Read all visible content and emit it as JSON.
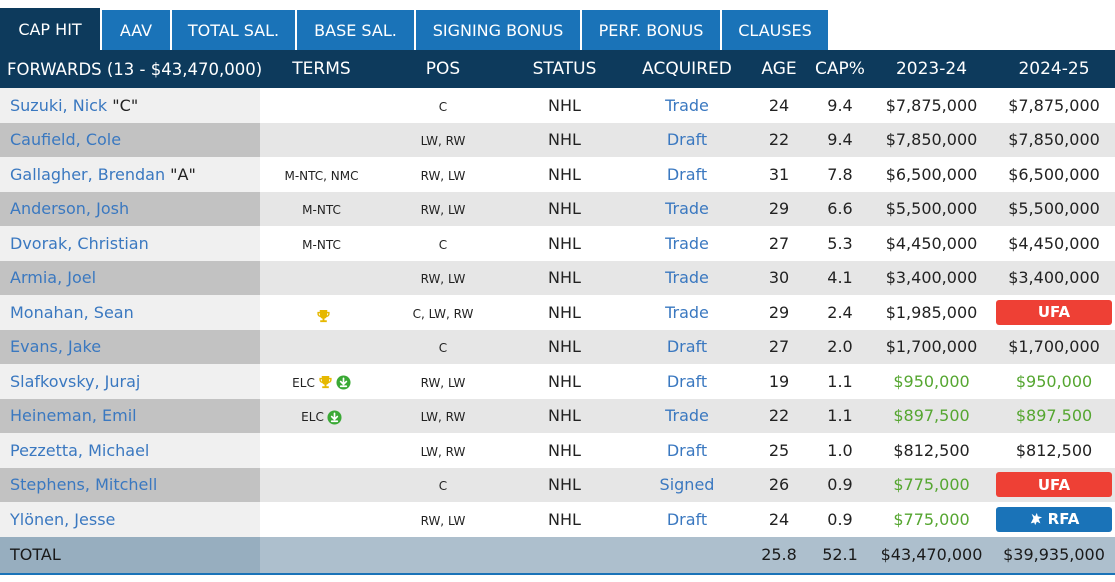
{
  "tabs": [
    "CAP HIT",
    "AAV",
    "TOTAL SAL.",
    "BASE SAL.",
    "SIGNING BONUS",
    "PERF. BONUS",
    "CLAUSES"
  ],
  "header": {
    "group": "FORWARDS (13 - $43,470,000)",
    "terms": "TERMS",
    "pos": "POS",
    "status": "STATUS",
    "acquired": "ACQUIRED",
    "age": "AGE",
    "cap_pct": "CAP%",
    "y1": "2023-24",
    "y2": "2024-25"
  },
  "colors": {
    "tab_active": "#0d3a5c",
    "tab": "#1a73b8",
    "link": "#3a78c0",
    "green": "#55a630",
    "ufa": "#ee4035",
    "rfa": "#1a73b8"
  },
  "rows": [
    {
      "name": "Suzuki, Nick",
      "tag": " \"C\"",
      "terms": "",
      "icons": [],
      "pos": "C",
      "status": "NHL",
      "acquired": "Trade",
      "age": "24",
      "cap": "9.4",
      "y1": "$7,875,000",
      "y1_green": false,
      "y2": "$7,875,000",
      "y2_green": false,
      "y2_badge": ""
    },
    {
      "name": "Caufield, Cole",
      "tag": "",
      "terms": "",
      "icons": [],
      "pos": "LW, RW",
      "status": "NHL",
      "acquired": "Draft",
      "age": "22",
      "cap": "9.4",
      "y1": "$7,850,000",
      "y1_green": false,
      "y2": "$7,850,000",
      "y2_green": false,
      "y2_badge": ""
    },
    {
      "name": "Gallagher, Brendan",
      "tag": " \"A\"",
      "terms": "M-NTC, NMC",
      "icons": [],
      "pos": "RW, LW",
      "status": "NHL",
      "acquired": "Draft",
      "age": "31",
      "cap": "7.8",
      "y1": "$6,500,000",
      "y1_green": false,
      "y2": "$6,500,000",
      "y2_green": false,
      "y2_badge": ""
    },
    {
      "name": "Anderson, Josh",
      "tag": "",
      "terms": "M-NTC",
      "icons": [],
      "pos": "RW, LW",
      "status": "NHL",
      "acquired": "Trade",
      "age": "29",
      "cap": "6.6",
      "y1": "$5,500,000",
      "y1_green": false,
      "y2": "$5,500,000",
      "y2_green": false,
      "y2_badge": ""
    },
    {
      "name": "Dvorak, Christian",
      "tag": "",
      "terms": "M-NTC",
      "icons": [],
      "pos": "C",
      "status": "NHL",
      "acquired": "Trade",
      "age": "27",
      "cap": "5.3",
      "y1": "$4,450,000",
      "y1_green": false,
      "y2": "$4,450,000",
      "y2_green": false,
      "y2_badge": ""
    },
    {
      "name": "Armia, Joel",
      "tag": "",
      "terms": "",
      "icons": [],
      "pos": "RW, LW",
      "status": "NHL",
      "acquired": "Trade",
      "age": "30",
      "cap": "4.1",
      "y1": "$3,400,000",
      "y1_green": false,
      "y2": "$3,400,000",
      "y2_green": false,
      "y2_badge": ""
    },
    {
      "name": "Monahan, Sean",
      "tag": "",
      "terms": "",
      "icons": [
        "trophy-icon"
      ],
      "pos": "C, LW, RW",
      "status": "NHL",
      "acquired": "Trade",
      "age": "29",
      "cap": "2.4",
      "y1": "$1,985,000",
      "y1_green": false,
      "y2": "",
      "y2_green": false,
      "y2_badge": "UFA"
    },
    {
      "name": "Evans, Jake",
      "tag": "",
      "terms": "",
      "icons": [],
      "pos": "C",
      "status": "NHL",
      "acquired": "Draft",
      "age": "27",
      "cap": "2.0",
      "y1": "$1,700,000",
      "y1_green": false,
      "y2": "$1,700,000",
      "y2_green": false,
      "y2_badge": ""
    },
    {
      "name": "Slafkovsky, Juraj",
      "tag": "",
      "terms": "ELC",
      "icons": [
        "trophy-icon",
        "download-icon"
      ],
      "pos": "RW, LW",
      "status": "NHL",
      "acquired": "Draft",
      "age": "19",
      "cap": "1.1",
      "y1": "$950,000",
      "y1_green": true,
      "y2": "$950,000",
      "y2_green": true,
      "y2_badge": ""
    },
    {
      "name": "Heineman, Emil",
      "tag": "",
      "terms": "ELC",
      "icons": [
        "download-icon"
      ],
      "pos": "LW, RW",
      "status": "NHL",
      "acquired": "Trade",
      "age": "22",
      "cap": "1.1",
      "y1": "$897,500",
      "y1_green": true,
      "y2": "$897,500",
      "y2_green": true,
      "y2_badge": ""
    },
    {
      "name": "Pezzetta, Michael",
      "tag": "",
      "terms": "",
      "icons": [],
      "pos": "LW, RW",
      "status": "NHL",
      "acquired": "Draft",
      "age": "25",
      "cap": "1.0",
      "y1": "$812,500",
      "y1_green": false,
      "y2": "$812,500",
      "y2_green": false,
      "y2_badge": ""
    },
    {
      "name": "Stephens, Mitchell",
      "tag": "",
      "terms": "",
      "icons": [],
      "pos": "C",
      "status": "NHL",
      "acquired": "Signed",
      "age": "26",
      "cap": "0.9",
      "y1": "$775,000",
      "y1_green": true,
      "y2": "",
      "y2_green": false,
      "y2_badge": "UFA"
    },
    {
      "name": "Ylönen, Jesse",
      "tag": "",
      "terms": "",
      "icons": [],
      "pos": "RW, LW",
      "status": "NHL",
      "acquired": "Draft",
      "age": "24",
      "cap": "0.9",
      "y1": "$775,000",
      "y1_green": true,
      "y2": "",
      "y2_green": false,
      "y2_badge": "RFA"
    }
  ],
  "total": {
    "label": "TOTAL",
    "age": "25.8",
    "cap": "52.1",
    "y1": "$43,470,000",
    "y2": "$39,935,000"
  }
}
